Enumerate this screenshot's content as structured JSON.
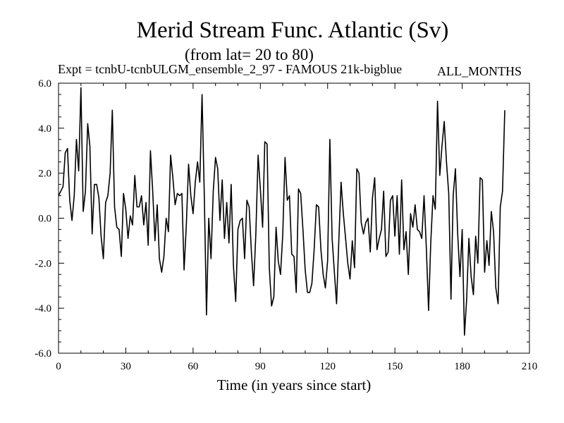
{
  "header": {
    "title": "Merid Stream Func. Atlantic (Sv)",
    "subtitle": "(from lat= 20 to 80)",
    "expt": "Expt = tcnbU-tcnbU",
    "model": "LGM_ensemble_2_97 - FAMOUS 21k-bigblue",
    "months": "ALL_MONTHS"
  },
  "chart_data": {
    "type": "line",
    "title": "Merid Stream Func. Atlantic (Sv)",
    "subtitle": "(from lat= 20 to 80)",
    "xlabel": "Time (in years since start)",
    "ylabel": "",
    "xlim": [
      0,
      210
    ],
    "ylim": [
      -6.0,
      6.0
    ],
    "xticks": [
      0,
      30,
      60,
      90,
      120,
      150,
      180,
      210
    ],
    "xtick_labels": [
      "0",
      "30",
      "60",
      "90",
      "120",
      "150",
      "180",
      "210"
    ],
    "yticks": [
      -6,
      -4,
      -2,
      0,
      2,
      4,
      6
    ],
    "ytick_labels": [
      "-6.0",
      "-4.0",
      "-2.0",
      "0.0",
      "2.0",
      "4.0",
      "6.0"
    ],
    "grid": false,
    "series": [
      {
        "name": "Merid Stream Func. Atlantic",
        "x": [
          0,
          1,
          2,
          3,
          4,
          5,
          6,
          7,
          8,
          9,
          10,
          11,
          12,
          13,
          14,
          15,
          16,
          17,
          18,
          19,
          20,
          21,
          22,
          23,
          24,
          25,
          26,
          27,
          28,
          29,
          30,
          31,
          32,
          33,
          34,
          35,
          36,
          37,
          38,
          39,
          40,
          41,
          42,
          43,
          44,
          45,
          46,
          47,
          48,
          49,
          50,
          51,
          52,
          53,
          54,
          55,
          56,
          57,
          58,
          59,
          60,
          61,
          62,
          63,
          64,
          65,
          66,
          67,
          68,
          69,
          70,
          71,
          72,
          73,
          74,
          75,
          76,
          77,
          78,
          79,
          80,
          81,
          82,
          83,
          84,
          85,
          86,
          87,
          88,
          89,
          90,
          91,
          92,
          93,
          94,
          95,
          96,
          97,
          98,
          99,
          100,
          101,
          102,
          103,
          104,
          105,
          106,
          107,
          108,
          109,
          110,
          111,
          112,
          113,
          114,
          115,
          116,
          117,
          118,
          119,
          120,
          121,
          122,
          123,
          124,
          125,
          126,
          127,
          128,
          129,
          130,
          131,
          132,
          133,
          134,
          135,
          136,
          137,
          138,
          139,
          140,
          141,
          142,
          143,
          144,
          145,
          146,
          147,
          148,
          149,
          150,
          151,
          152,
          153,
          154,
          155,
          156,
          157,
          158,
          159,
          160,
          161,
          162,
          163,
          164,
          165,
          166,
          167,
          168,
          169,
          170,
          171,
          172,
          173,
          174,
          175,
          176,
          177,
          178,
          179,
          180,
          181,
          182,
          183,
          184,
          185,
          186,
          187,
          188,
          189,
          190,
          191,
          192,
          193,
          194,
          195,
          196,
          197,
          198,
          199
        ],
        "values": [
          1.0,
          1.2,
          1.4,
          2.9,
          3.1,
          0.8,
          -0.1,
          1.0,
          3.5,
          2.1,
          5.8,
          0.3,
          1.2,
          4.2,
          3.2,
          -0.7,
          1.5,
          1.5,
          0.9,
          -0.8,
          -1.8,
          0.7,
          1.0,
          2.0,
          4.8,
          0.5,
          -0.4,
          -0.5,
          -1.7,
          1.1,
          0.4,
          -0.9,
          0.1,
          -0.3,
          1.9,
          0.5,
          0.5,
          1.0,
          -0.3,
          0.7,
          -1.2,
          3.0,
          1.2,
          -1.0,
          0.6,
          -1.8,
          -2.4,
          -1.7,
          0.0,
          -0.6,
          2.8,
          1.8,
          0.6,
          1.1,
          1.0,
          1.1,
          -2.3,
          -0.3,
          2.4,
          1.0,
          0.2,
          1.6,
          2.5,
          1.6,
          5.5,
          1.0,
          -4.3,
          0.0,
          -1.8,
          1.2,
          2.7,
          2.2,
          -0.1,
          1.7,
          -0.9,
          0.7,
          -1.1,
          1.5,
          -2.1,
          -3.7,
          -0.5,
          -0.1,
          0.0,
          -1.8,
          0.8,
          0.5,
          -1.5,
          -3.0,
          -0.7,
          2.8,
          1.3,
          -0.4,
          3.4,
          3.3,
          -2.2,
          -3.9,
          -3.5,
          -0.4,
          -1.9,
          -2.5,
          -0.7,
          2.7,
          0.8,
          1.0,
          -1.6,
          -1.7,
          -3.3,
          1.3,
          1.1,
          -0.5,
          -2.3,
          -3.3,
          -3.3,
          -2.9,
          -1.4,
          0.6,
          0.5,
          -1.4,
          -2.5,
          -3.1,
          -1.9,
          3.5,
          -0.9,
          -2.4,
          -3.8,
          -1.0,
          1.6,
          0.2,
          -0.9,
          -2.0,
          -2.7,
          -1.0,
          -2.2,
          2.2,
          2.0,
          -0.2,
          -0.7,
          -0.2,
          0.0,
          -1.5,
          0.9,
          1.8,
          -1.4,
          -0.9,
          -0.5,
          1.2,
          -1.7,
          -1.5,
          0.8,
          1.0,
          -0.8,
          1.0,
          -1.6,
          1.7,
          -1.4,
          -0.6,
          -2.5,
          0.2,
          -0.4,
          0.6,
          -0.5,
          -0.6,
          -0.9,
          1.0,
          -1.3,
          -4.1,
          -1.1,
          1.0,
          0.4,
          5.2,
          1.9,
          3.2,
          4.3,
          2.5,
          1.1,
          -3.6,
          1.0,
          2.2,
          -0.7,
          -2.6,
          -0.5,
          -5.2,
          -3.6,
          -0.9,
          -2.6,
          -3.4,
          -0.8,
          -2.0,
          1.8,
          1.7,
          -2.4,
          -1.0,
          -2.1,
          0.3,
          -0.6,
          -3.1,
          -3.8,
          0.5,
          1.2,
          4.8
        ]
      }
    ]
  }
}
